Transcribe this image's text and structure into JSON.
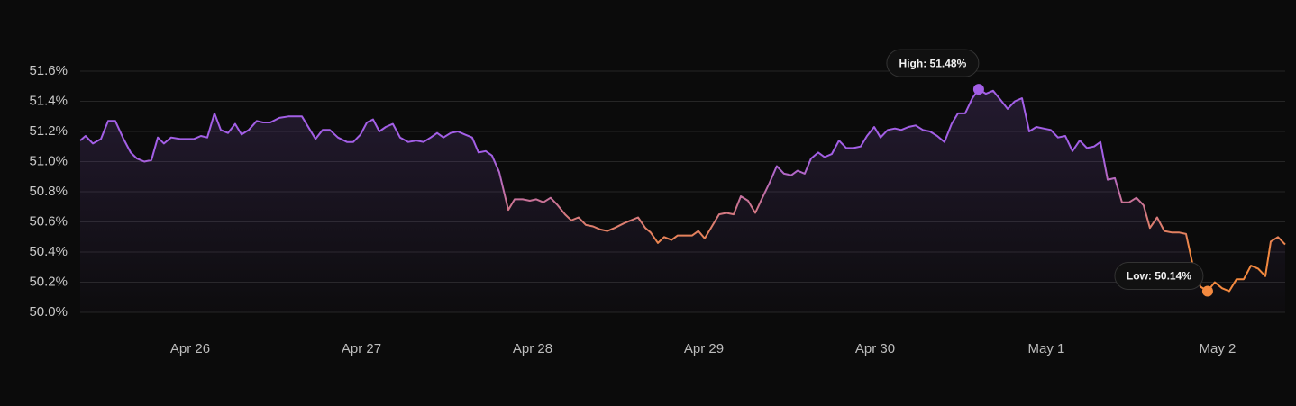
{
  "chart_data": {
    "type": "line",
    "x": [
      -0.642,
      -0.611,
      -0.568,
      -0.521,
      -0.479,
      -0.437,
      -0.389,
      -0.347,
      -0.311,
      -0.268,
      -0.226,
      -0.189,
      -0.153,
      -0.111,
      -0.058,
      0.021,
      0.063,
      0.1,
      0.142,
      0.179,
      0.221,
      0.263,
      0.3,
      0.342,
      0.389,
      0.426,
      0.468,
      0.521,
      0.574,
      0.653,
      0.732,
      0.774,
      0.816,
      0.863,
      0.916,
      0.953,
      0.995,
      1.032,
      1.068,
      1.105,
      1.142,
      1.184,
      1.226,
      1.274,
      1.321,
      1.363,
      1.405,
      1.442,
      1.479,
      1.521,
      1.563,
      1.605,
      1.647,
      1.684,
      1.726,
      1.763,
      1.805,
      1.858,
      1.895,
      1.942,
      1.984,
      2.021,
      2.063,
      2.105,
      2.147,
      2.189,
      2.226,
      2.268,
      2.311,
      2.353,
      2.395,
      2.437,
      2.479,
      2.532,
      2.574,
      2.616,
      2.658,
      2.689,
      2.732,
      2.768,
      2.811,
      2.847,
      2.932,
      2.968,
      3.005,
      3.047,
      3.089,
      3.132,
      3.174,
      3.216,
      3.258,
      3.3,
      3.342,
      3.384,
      3.426,
      3.468,
      3.511,
      3.547,
      3.589,
      3.626,
      3.668,
      3.705,
      3.747,
      3.789,
      3.832,
      3.874,
      3.916,
      3.953,
      3.995,
      4.032,
      4.074,
      4.116,
      4.153,
      4.195,
      4.237,
      4.279,
      4.321,
      4.363,
      4.405,
      4.447,
      4.484,
      4.526,
      4.568,
      4.605,
      4.647,
      4.689,
      4.732,
      4.774,
      4.816,
      4.858,
      4.9,
      4.942,
      4.984,
      5.026,
      5.068,
      5.111,
      5.153,
      5.195,
      5.237,
      5.279,
      5.316,
      5.358,
      5.4,
      5.442,
      5.484,
      5.526,
      5.568,
      5.605,
      5.647,
      5.689,
      5.732,
      5.774,
      5.816,
      5.858,
      5.9,
      5.942,
      5.984,
      6.026,
      6.068,
      6.111,
      6.153,
      6.195,
      6.237,
      6.279,
      6.311,
      6.353,
      6.395
    ],
    "values": [
      51.14,
      51.17,
      51.12,
      51.15,
      51.27,
      51.27,
      51.15,
      51.06,
      51.02,
      51.0,
      51.01,
      51.16,
      51.12,
      51.16,
      51.15,
      51.15,
      51.17,
      51.16,
      51.32,
      51.21,
      51.19,
      51.25,
      51.18,
      51.21,
      51.27,
      51.26,
      51.26,
      51.29,
      51.3,
      51.3,
      51.15,
      51.21,
      51.21,
      51.16,
      51.13,
      51.13,
      51.18,
      51.26,
      51.28,
      51.2,
      51.23,
      51.25,
      51.16,
      51.13,
      51.14,
      51.13,
      51.16,
      51.19,
      51.16,
      51.19,
      51.2,
      51.18,
      51.16,
      51.06,
      51.07,
      51.04,
      50.93,
      50.68,
      50.75,
      50.75,
      50.74,
      50.75,
      50.73,
      50.76,
      50.71,
      50.65,
      50.61,
      50.63,
      50.58,
      50.57,
      50.55,
      50.54,
      50.56,
      50.59,
      50.61,
      50.63,
      50.56,
      50.53,
      50.46,
      50.5,
      50.48,
      50.51,
      50.51,
      50.54,
      50.49,
      50.57,
      50.65,
      50.66,
      50.65,
      50.77,
      50.74,
      50.66,
      50.76,
      50.86,
      50.97,
      50.92,
      50.91,
      50.94,
      50.92,
      51.02,
      51.06,
      51.03,
      51.05,
      51.14,
      51.09,
      51.09,
      51.1,
      51.17,
      51.23,
      51.16,
      51.21,
      51.22,
      51.21,
      51.23,
      51.24,
      51.21,
      51.2,
      51.17,
      51.13,
      51.25,
      51.32,
      51.32,
      51.42,
      51.48,
      51.45,
      51.47,
      51.41,
      51.35,
      51.4,
      51.42,
      51.2,
      51.23,
      51.22,
      51.21,
      51.16,
      51.17,
      51.07,
      51.14,
      51.09,
      51.1,
      51.13,
      50.88,
      50.89,
      50.73,
      50.73,
      50.76,
      50.71,
      50.56,
      50.63,
      50.54,
      50.53,
      50.53,
      50.52,
      50.3,
      50.17,
      50.14,
      50.2,
      50.16,
      50.14,
      50.22,
      50.22,
      50.31,
      50.29,
      50.24,
      50.47,
      50.5,
      50.45
    ],
    "xlim": [
      -0.642,
      6.395
    ],
    "xticks": [
      {
        "value": 0,
        "label": "Apr 26"
      },
      {
        "value": 1,
        "label": "Apr 27"
      },
      {
        "value": 2,
        "label": "Apr 28"
      },
      {
        "value": 3,
        "label": "Apr 29"
      },
      {
        "value": 4,
        "label": "Apr 30"
      },
      {
        "value": 5,
        "label": "May 1"
      },
      {
        "value": 6,
        "label": "May 2"
      }
    ],
    "ylim": [
      50.0,
      51.6
    ],
    "yticks": [
      {
        "value": 50.0,
        "label": "50.0%"
      },
      {
        "value": 50.2,
        "label": "50.2%"
      },
      {
        "value": 50.4,
        "label": "50.4%"
      },
      {
        "value": 50.6,
        "label": "50.6%"
      },
      {
        "value": 50.8,
        "label": "50.8%"
      },
      {
        "value": 51.0,
        "label": "51.0%"
      },
      {
        "value": 51.2,
        "label": "51.2%"
      },
      {
        "value": 51.4,
        "label": "51.4%"
      },
      {
        "value": 51.6,
        "label": "51.6%"
      }
    ],
    "grid": true,
    "high": {
      "label": "High: 51.48%",
      "color": "#a35fe6"
    },
    "low": {
      "label": "Low: 50.14%",
      "color": "#f3893f"
    }
  }
}
